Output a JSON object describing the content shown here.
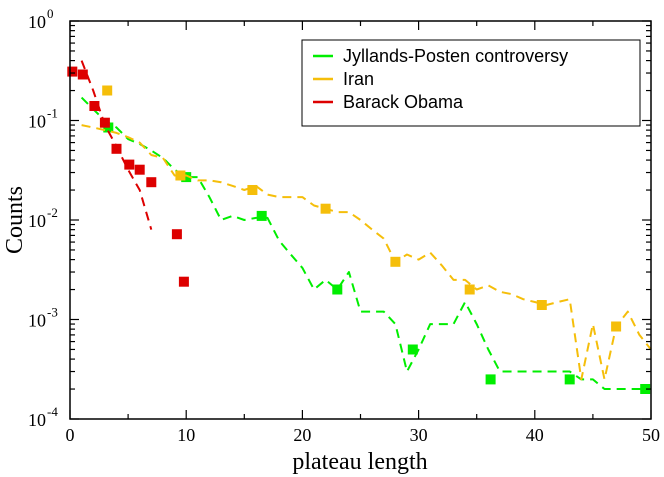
{
  "chart_data": {
    "type": "scatter",
    "title": "",
    "xlabel": "plateau length",
    "ylabel": "Counts",
    "xlim": [
      0,
      50
    ],
    "ylim": [
      0.0001,
      1
    ],
    "yscale": "log",
    "grid": false,
    "legend_position": "top-right",
    "x_ticks": [
      {
        "value": 0,
        "label": "0"
      },
      {
        "value": 10,
        "label": "10"
      },
      {
        "value": 20,
        "label": "20"
      },
      {
        "value": 30,
        "label": "30"
      },
      {
        "value": 40,
        "label": "40"
      },
      {
        "value": 50,
        "label": "50"
      }
    ],
    "y_ticks": [
      {
        "value": 1,
        "base": "10",
        "exp": "0"
      },
      {
        "value": 0.1,
        "base": "10",
        "exp": "-1"
      },
      {
        "value": 0.01,
        "base": "10",
        "exp": "-2"
      },
      {
        "value": 0.001,
        "base": "10",
        "exp": "-3"
      },
      {
        "value": 0.0001,
        "base": "10",
        "exp": "-4"
      }
    ],
    "series": [
      {
        "name": "Jyllands-Posten controversy",
        "color": "#00ee00",
        "line": {
          "x": [
            1,
            2,
            3,
            4,
            5,
            6,
            7,
            8,
            9,
            10,
            11,
            12,
            13,
            14,
            15,
            16,
            17,
            18,
            19,
            20,
            21,
            22,
            23,
            24,
            25,
            26,
            27,
            28,
            29,
            30,
            31,
            32,
            33,
            34,
            35,
            36,
            37,
            38,
            39,
            40,
            41,
            42,
            43,
            44,
            45,
            46,
            47,
            48,
            49,
            50
          ],
          "y": [
            0.17,
            0.13,
            0.1,
            0.085,
            0.065,
            0.058,
            0.05,
            0.042,
            0.032,
            0.027,
            0.027,
            0.017,
            0.01,
            0.011,
            0.01,
            0.0105,
            0.0105,
            0.0062,
            0.0045,
            0.0033,
            0.002,
            0.0025,
            0.002,
            0.003,
            0.0012,
            0.0012,
            0.0012,
            0.0009,
            0.0003,
            0.0005,
            0.0009,
            0.0009,
            0.0009,
            0.0015,
            0.0009,
            0.0005,
            0.0003,
            0.0003,
            0.0003,
            0.0003,
            0.0003,
            0.0003,
            0.0003,
            0.00025,
            0.00025,
            0.0002,
            0.0002,
            0.0002,
            0.0002,
            0.0002
          ]
        },
        "markers": {
          "x": [
            3.3,
            10,
            16.5,
            23,
            29.5,
            36.2,
            43,
            49.5
          ],
          "y": [
            0.085,
            0.027,
            0.011,
            0.002,
            0.0005,
            0.00025,
            0.00025,
            0.0002
          ]
        }
      },
      {
        "name": "Iran",
        "color": "#f5be0a",
        "line": {
          "x": [
            1,
            2,
            3,
            4,
            5,
            6,
            7,
            8,
            9,
            10,
            11,
            12,
            13,
            14,
            15,
            16,
            17,
            18,
            19,
            20,
            21,
            22,
            23,
            24,
            25,
            26,
            27,
            28,
            29,
            30,
            31,
            32,
            33,
            34,
            35,
            36,
            37,
            38,
            39,
            40,
            41,
            42,
            43,
            44,
            45,
            46,
            47,
            48,
            49,
            50
          ],
          "y": [
            0.09,
            0.085,
            0.08,
            0.075,
            0.068,
            0.06,
            0.045,
            0.042,
            0.028,
            0.028,
            0.025,
            0.025,
            0.024,
            0.022,
            0.02,
            0.022,
            0.018,
            0.017,
            0.017,
            0.017,
            0.014,
            0.013,
            0.012,
            0.012,
            0.01,
            0.008,
            0.0065,
            0.0038,
            0.0045,
            0.004,
            0.0047,
            0.0035,
            0.0025,
            0.0025,
            0.002,
            0.0022,
            0.0019,
            0.0018,
            0.0016,
            0.0015,
            0.0014,
            0.0015,
            0.0016,
            0.00025,
            0.0009,
            0.00025,
            0.00085,
            0.0012,
            0.0007,
            0.0005
          ]
        },
        "markers": {
          "x": [
            3.2,
            9.5,
            15.7,
            22,
            28,
            34.4,
            40.6,
            47
          ],
          "y": [
            0.2,
            0.028,
            0.02,
            0.013,
            0.0038,
            0.002,
            0.0014,
            0.00085
          ]
        }
      },
      {
        "name": "Barack Obama",
        "color": "#dd0000",
        "line": {
          "x": [
            1,
            2,
            3,
            4,
            5,
            6,
            7
          ],
          "y": [
            0.4,
            0.2,
            0.09,
            0.055,
            0.032,
            0.02,
            0.008
          ]
        },
        "markers": {
          "x": [
            0.2,
            1.1,
            2.1,
            3,
            4,
            5.1,
            6,
            7,
            9.2,
            9.8
          ],
          "y": [
            0.31,
            0.29,
            0.14,
            0.095,
            0.052,
            0.036,
            0.032,
            0.024,
            0.0072,
            0.0024
          ]
        }
      }
    ]
  }
}
